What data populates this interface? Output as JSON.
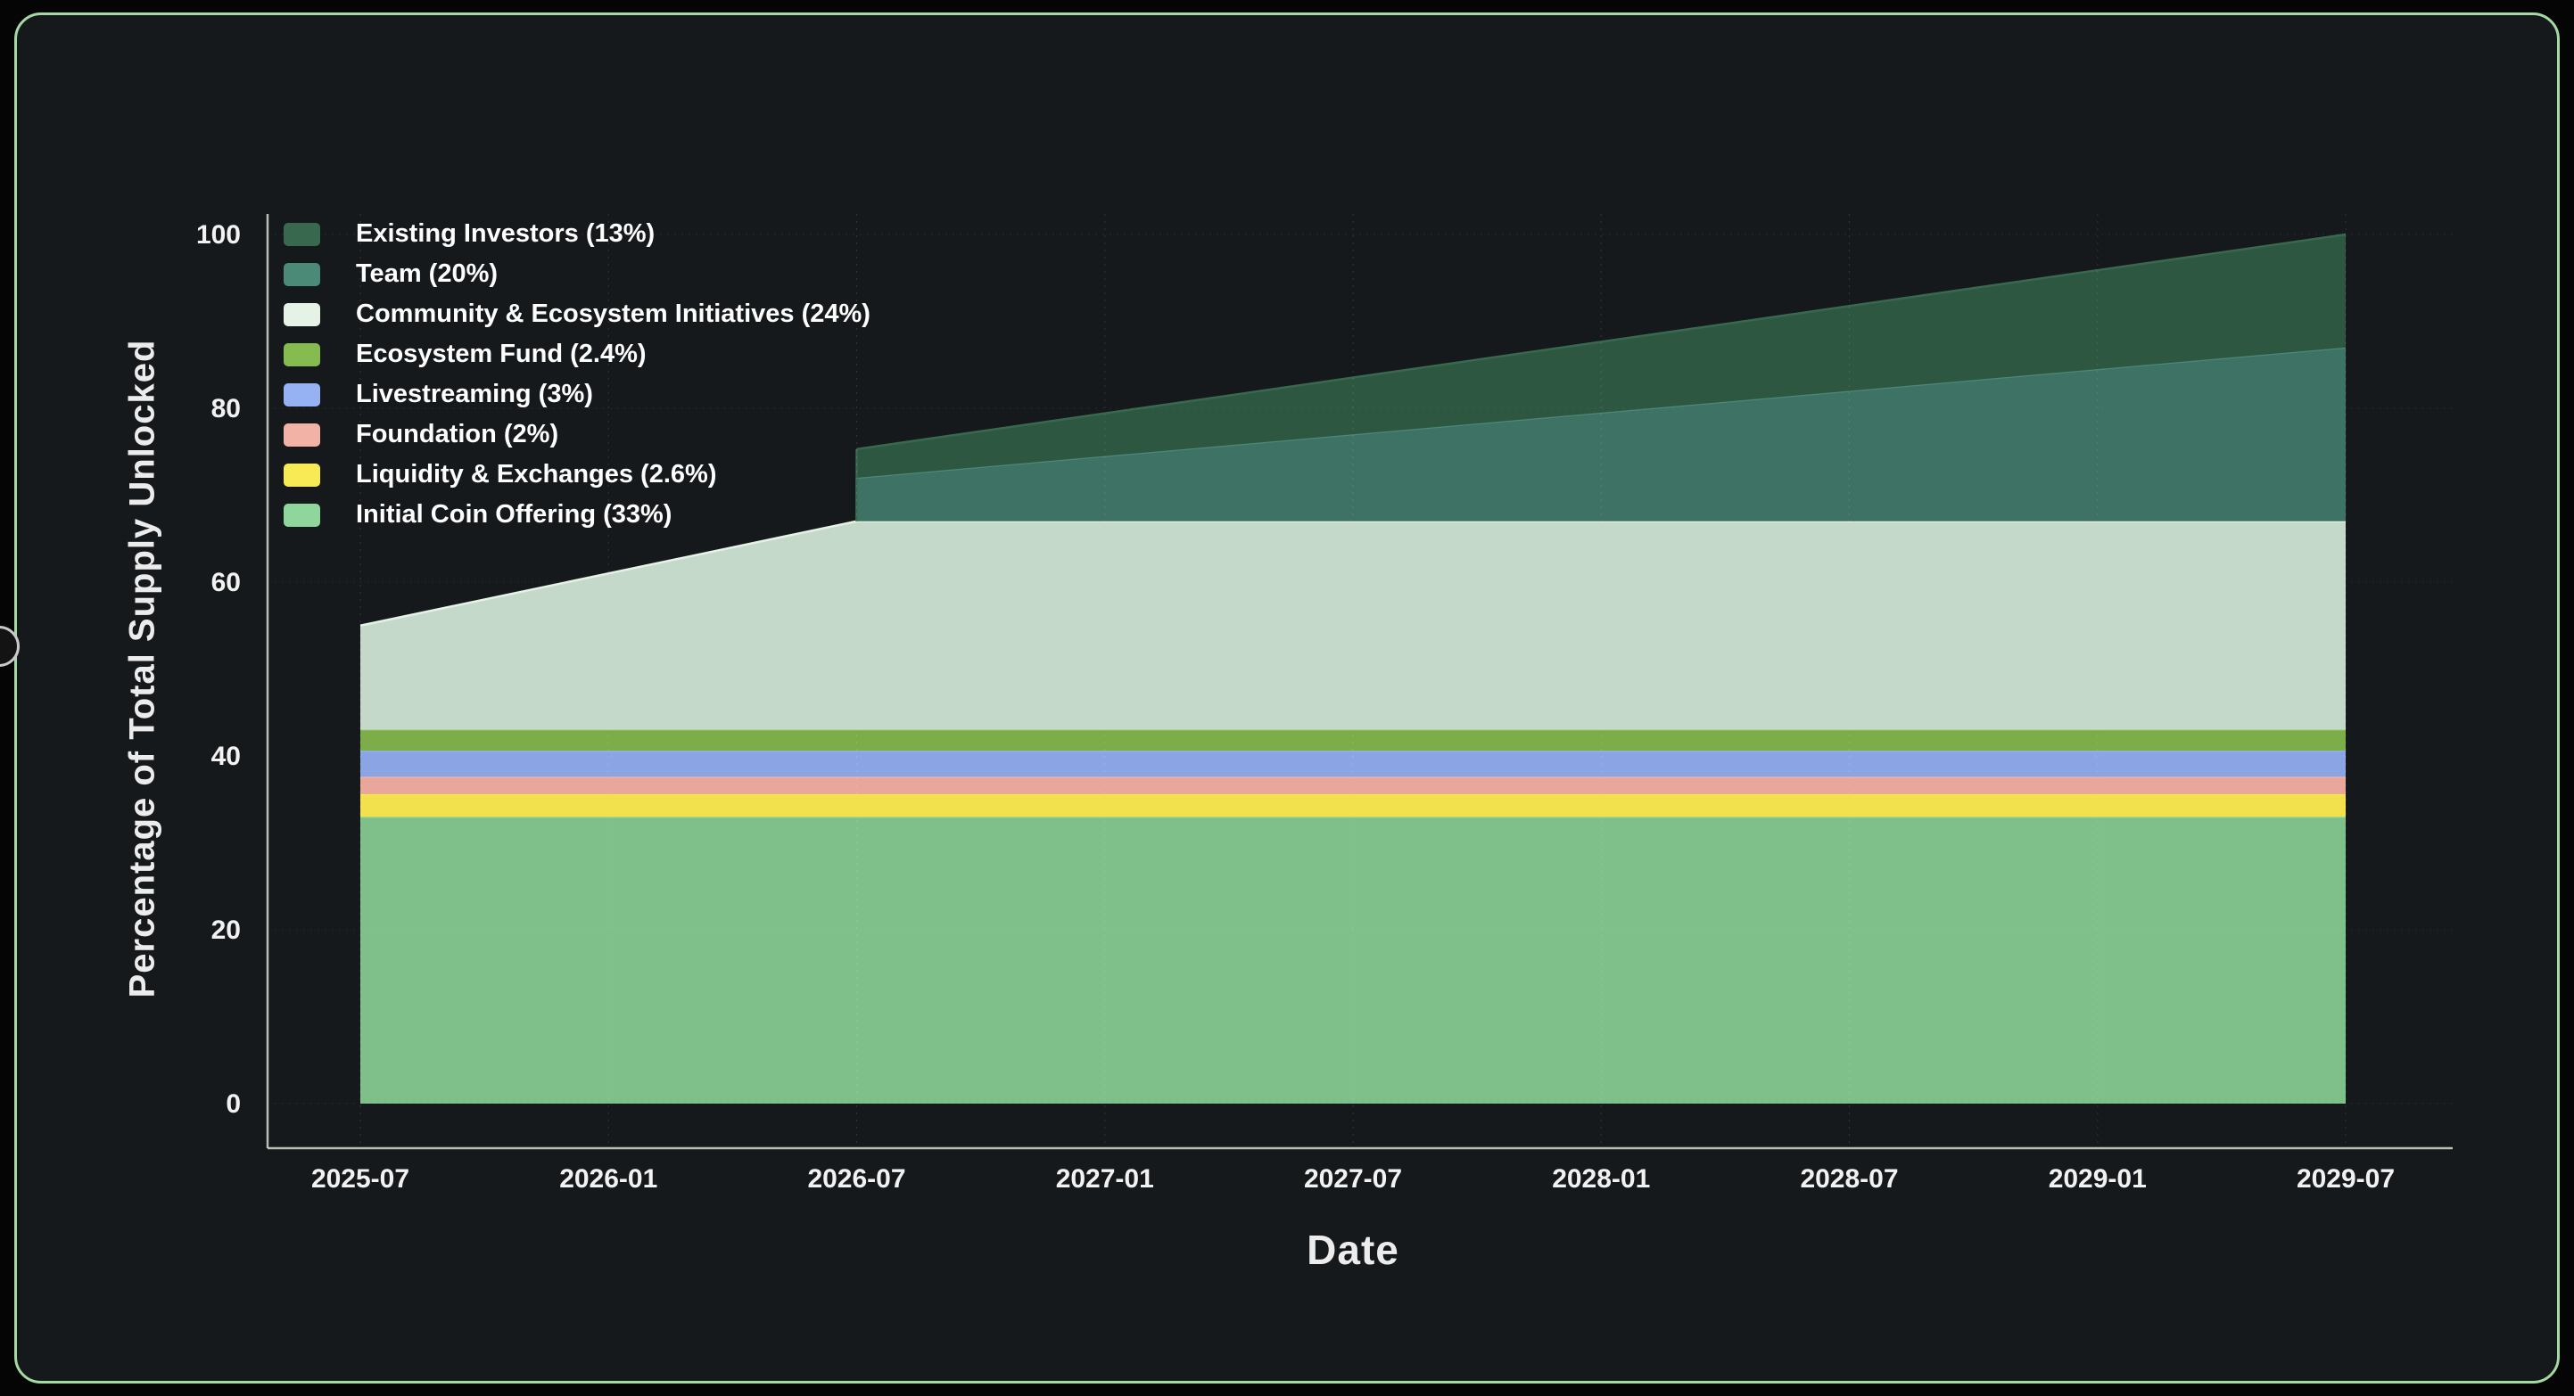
{
  "page": {
    "background_color": "#050505",
    "card_background_color": "#16191b",
    "card_border_color": "#a4d9a2"
  },
  "chart_data": {
    "type": "area",
    "stacked": true,
    "title": "",
    "xlabel": "Date",
    "ylabel": "Percentage of Total Supply Unlocked",
    "xlim": [
      0,
      4
    ],
    "ylim": [
      0,
      100
    ],
    "grid": true,
    "legend_position": "top-left inside plot",
    "x_tick_labels": [
      "2025-07",
      "2026-01",
      "2026-07",
      "2027-01",
      "2027-07",
      "2028-01",
      "2028-07",
      "2029-01",
      "2029-07"
    ],
    "x_tick_positions": [
      0,
      0.5,
      1,
      1.5,
      2,
      2.5,
      3,
      3.5,
      4
    ],
    "y_tick_labels": [
      "0",
      "20",
      "40",
      "60",
      "80",
      "100"
    ],
    "y_tick_values": [
      0,
      20,
      40,
      60,
      80,
      100
    ],
    "x_breakpoints": [
      0,
      1,
      1,
      4
    ],
    "x_breakpoint_dates": [
      "2025-07",
      "2026-07",
      "2026-07",
      "2029-07"
    ],
    "series": [
      {
        "id": "initial-coin-offering",
        "name": "Initial Coin Offering (33%)",
        "fill": "#7fbf8a",
        "line": "#8ed69c",
        "values": [
          33,
          33,
          33,
          33
        ]
      },
      {
        "id": "liquidity-exchanges",
        "name": "Liquidity & Exchanges (2.6%)",
        "fill": "#f3e04d",
        "line": "#f8ea55",
        "values": [
          2.6,
          2.6,
          2.6,
          2.6
        ]
      },
      {
        "id": "foundation",
        "name": "Foundation (2%)",
        "fill": "#e9a69b",
        "line": "#f2b3a6",
        "values": [
          2,
          2,
          2,
          2
        ]
      },
      {
        "id": "livestreaming",
        "name": "Livestreaming (3%)",
        "fill": "#8ba5e4",
        "line": "#97b2f2",
        "values": [
          3,
          3,
          3,
          3
        ]
      },
      {
        "id": "ecosystem-fund",
        "name": "Ecosystem Fund (2.4%)",
        "fill": "#7cad49",
        "line": "#86bc4f",
        "values": [
          2.4,
          2.4,
          2.4,
          2.4
        ]
      },
      {
        "id": "community-ecosystem-initiatives",
        "name": "Community & Ecosystem Initiatives (24%)",
        "fill": "#c4d9c9",
        "line": "#e4f3e6",
        "values": [
          12,
          24,
          24,
          24
        ]
      },
      {
        "id": "team",
        "name": "Team (20%)",
        "fill": "#3e7264",
        "line": "#4a8a76",
        "values": [
          0,
          0,
          5,
          20
        ]
      },
      {
        "id": "existing-investors",
        "name": "Existing Investors (13%)",
        "fill": "#2e5742",
        "line": "#38694f",
        "values": [
          0,
          0,
          3.3,
          13
        ]
      }
    ],
    "stacked_tops_note": "cumulative top of stack: 55 at 2025-07, 67 flat from 2026-07 (community fully vested), team top reaches 87 and total 100 at 2029-07"
  }
}
